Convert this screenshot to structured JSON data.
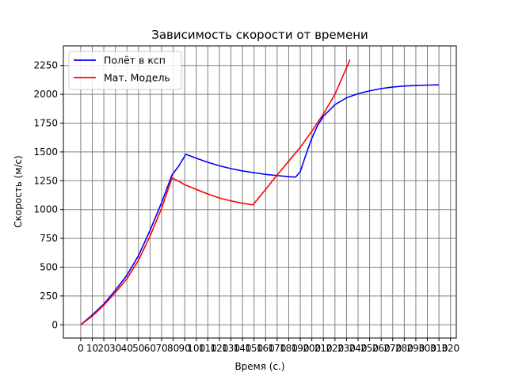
{
  "chart_data": {
    "type": "line",
    "title": "Зависимость скорости от времени",
    "xlabel": "Время (с.)",
    "ylabel": "Скорость (м/с)",
    "xlim": [
      -15,
      325
    ],
    "ylim": [
      -115,
      2420
    ],
    "xticks": [
      0,
      10,
      20,
      30,
      40,
      50,
      60,
      70,
      80,
      90,
      100,
      110,
      120,
      130,
      140,
      150,
      160,
      170,
      180,
      190,
      200,
      210,
      220,
      230,
      240,
      250,
      260,
      270,
      280,
      290,
      300,
      310,
      320
    ],
    "yticks": [
      0,
      250,
      500,
      750,
      1000,
      1250,
      1500,
      1750,
      2000,
      2250
    ],
    "grid": true,
    "legend_position": "top-left",
    "series": [
      {
        "name": "Полёт в ксп",
        "color": "#0000ff",
        "x": [
          0,
          10,
          20,
          30,
          40,
          50,
          60,
          70,
          79,
          85,
          91,
          100,
          110,
          120,
          130,
          140,
          150,
          160,
          170,
          180,
          186,
          190,
          195,
          200,
          205,
          210,
          220,
          230,
          240,
          250,
          260,
          270,
          280,
          290,
          300,
          310
        ],
        "y": [
          0,
          85,
          180,
          300,
          430,
          600,
          820,
          1060,
          1300,
          1380,
          1480,
          1445,
          1410,
          1380,
          1355,
          1335,
          1320,
          1305,
          1295,
          1285,
          1282,
          1330,
          1480,
          1620,
          1730,
          1810,
          1910,
          1970,
          2005,
          2030,
          2050,
          2063,
          2072,
          2077,
          2080,
          2082
        ]
      },
      {
        "name": "Мат. Модель",
        "color": "#ff0000",
        "x": [
          0,
          10,
          20,
          30,
          40,
          50,
          60,
          70,
          79,
          85,
          90,
          100,
          110,
          120,
          130,
          140,
          149,
          160,
          170,
          180,
          190,
          200,
          210,
          220,
          233
        ],
        "y": [
          0,
          75,
          170,
          280,
          400,
          560,
          770,
          1010,
          1275,
          1245,
          1215,
          1175,
          1135,
          1100,
          1075,
          1055,
          1040,
          1175,
          1300,
          1420,
          1540,
          1680,
          1830,
          2000,
          2300
        ]
      }
    ]
  }
}
